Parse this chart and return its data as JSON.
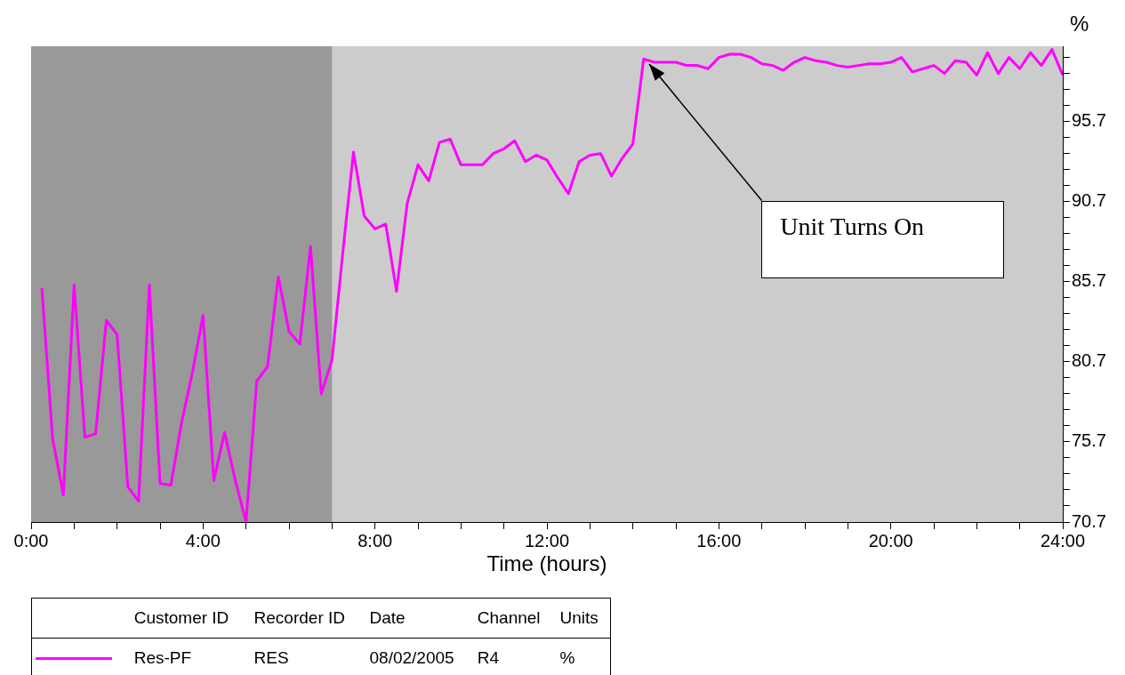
{
  "chart_data": {
    "type": "line",
    "xlabel": "Time (hours)",
    "ylabel": "%",
    "x": [
      0.25,
      0.5,
      0.75,
      1,
      1.25,
      1.5,
      1.75,
      2,
      2.25,
      2.5,
      2.75,
      3,
      3.25,
      3.5,
      3.75,
      4,
      4.25,
      4.5,
      4.75,
      5,
      5.25,
      5.5,
      5.75,
      6,
      6.25,
      6.5,
      6.75,
      7,
      7.25,
      7.5,
      7.75,
      8,
      8.25,
      8.5,
      8.75,
      9,
      9.25,
      9.5,
      9.75,
      10,
      10.25,
      10.5,
      10.75,
      11,
      11.25,
      11.5,
      11.75,
      12,
      12.25,
      12.5,
      12.75,
      13,
      13.25,
      13.5,
      13.75,
      14,
      14.25,
      14.5,
      14.75,
      15,
      15.25,
      15.5,
      15.75,
      16,
      16.25,
      16.5,
      16.75,
      17,
      17.25,
      17.5,
      17.75,
      18,
      18.25,
      18.5,
      18.75,
      19,
      19.25,
      19.5,
      19.75,
      20,
      20.25,
      20.5,
      20.75,
      21,
      21.25,
      21.5,
      21.75,
      22,
      22.25,
      22.5,
      22.75,
      23,
      23.25,
      23.5,
      23.75,
      24
    ],
    "series": [
      {
        "name": "Res-PF",
        "color": "#ff00ff",
        "values": [
          85.3,
          75.9,
          72.4,
          85.5,
          76.0,
          76.2,
          83.3,
          82.4,
          72.9,
          72.0,
          85.5,
          73.1,
          73.0,
          76.9,
          80.0,
          83.6,
          73.3,
          76.3,
          73.3,
          70.7,
          79.5,
          80.4,
          86.0,
          82.6,
          81.8,
          87.9,
          78.7,
          80.8,
          87.5,
          93.8,
          89.8,
          89.0,
          89.3,
          85.1,
          90.6,
          93.0,
          92.0,
          94.4,
          94.6,
          93.0,
          93.0,
          93.0,
          93.7,
          94.0,
          94.5,
          93.2,
          93.6,
          93.3,
          92.2,
          91.2,
          93.2,
          93.6,
          93.7,
          92.3,
          93.4,
          94.3,
          99.6,
          99.4,
          99.4,
          99.4,
          99.2,
          99.2,
          99.0,
          99.7,
          99.9,
          99.9,
          99.7,
          99.3,
          99.2,
          98.9,
          99.4,
          99.7,
          99.5,
          99.4,
          99.2,
          99.1,
          99.2,
          99.3,
          99.3,
          99.4,
          99.7,
          98.8,
          99.0,
          99.2,
          98.7,
          99.5,
          99.4,
          98.6,
          100.0,
          98.7,
          99.7,
          99.0,
          100.0,
          99.2,
          100.2,
          98.6
        ]
      }
    ],
    "xlim": [
      0,
      24
    ],
    "xticks": [
      {
        "value": 0,
        "label": "0:00"
      },
      {
        "value": 1,
        "label": null
      },
      {
        "value": 2,
        "label": null
      },
      {
        "value": 3,
        "label": null
      },
      {
        "value": 4,
        "label": "4:00"
      },
      {
        "value": 5,
        "label": null
      },
      {
        "value": 6,
        "label": null
      },
      {
        "value": 7,
        "label": null
      },
      {
        "value": 8,
        "label": "8:00"
      },
      {
        "value": 9,
        "label": null
      },
      {
        "value": 10,
        "label": null
      },
      {
        "value": 11,
        "label": null
      },
      {
        "value": 12,
        "label": "12:00"
      },
      {
        "value": 13,
        "label": null
      },
      {
        "value": 14,
        "label": null
      },
      {
        "value": 15,
        "label": null
      },
      {
        "value": 16,
        "label": "16:00"
      },
      {
        "value": 17,
        "label": null
      },
      {
        "value": 18,
        "label": null
      },
      {
        "value": 19,
        "label": null
      },
      {
        "value": 20,
        "label": "20:00"
      },
      {
        "value": 21,
        "label": null
      },
      {
        "value": 22,
        "label": null
      },
      {
        "value": 23,
        "label": null
      },
      {
        "value": 24,
        "label": "24:00"
      }
    ],
    "ylim": [
      70.7,
      100.4
    ],
    "yticks": [
      70.7,
      {
        "value": 71.7,
        "label": null
      },
      {
        "value": 72.7,
        "label": null
      },
      {
        "value": 73.7,
        "label": null
      },
      {
        "value": 74.7,
        "label": null
      },
      75.7,
      {
        "value": 76.7,
        "label": null
      },
      {
        "value": 77.7,
        "label": null
      },
      {
        "value": 78.7,
        "label": null
      },
      {
        "value": 79.7,
        "label": null
      },
      80.7,
      {
        "value": 81.7,
        "label": null
      },
      {
        "value": 82.7,
        "label": null
      },
      {
        "value": 83.7,
        "label": null
      },
      {
        "value": 84.7,
        "label": null
      },
      85.7,
      {
        "value": 86.7,
        "label": null
      },
      {
        "value": 87.7,
        "label": null
      },
      {
        "value": 88.7,
        "label": null
      },
      {
        "value": 89.7,
        "label": null
      },
      90.7,
      {
        "value": 91.7,
        "label": null
      },
      {
        "value": 92.7,
        "label": null
      },
      {
        "value": 93.7,
        "label": null
      },
      {
        "value": 94.7,
        "label": null
      },
      95.7,
      {
        "value": 96.7,
        "label": null
      },
      {
        "value": 97.7,
        "label": null
      },
      {
        "value": 98.7,
        "label": null
      },
      {
        "value": 99.7,
        "label": null
      }
    ],
    "bands": [
      {
        "axis": "x",
        "from": 0,
        "to": 7,
        "color": "#999999"
      }
    ],
    "annotations": [
      {
        "text": "Unit Turns On",
        "x": 14.25,
        "y": 99.6
      },
      "Customer ID",
      "Recorder ID",
      "Date",
      "Channel",
      "Units",
      "RES",
      "08/02/2005",
      "R4",
      "%"
    ],
    "grid": false,
    "legend": "bottom",
    "marker": "none",
    "line_style": "solid"
  }
}
